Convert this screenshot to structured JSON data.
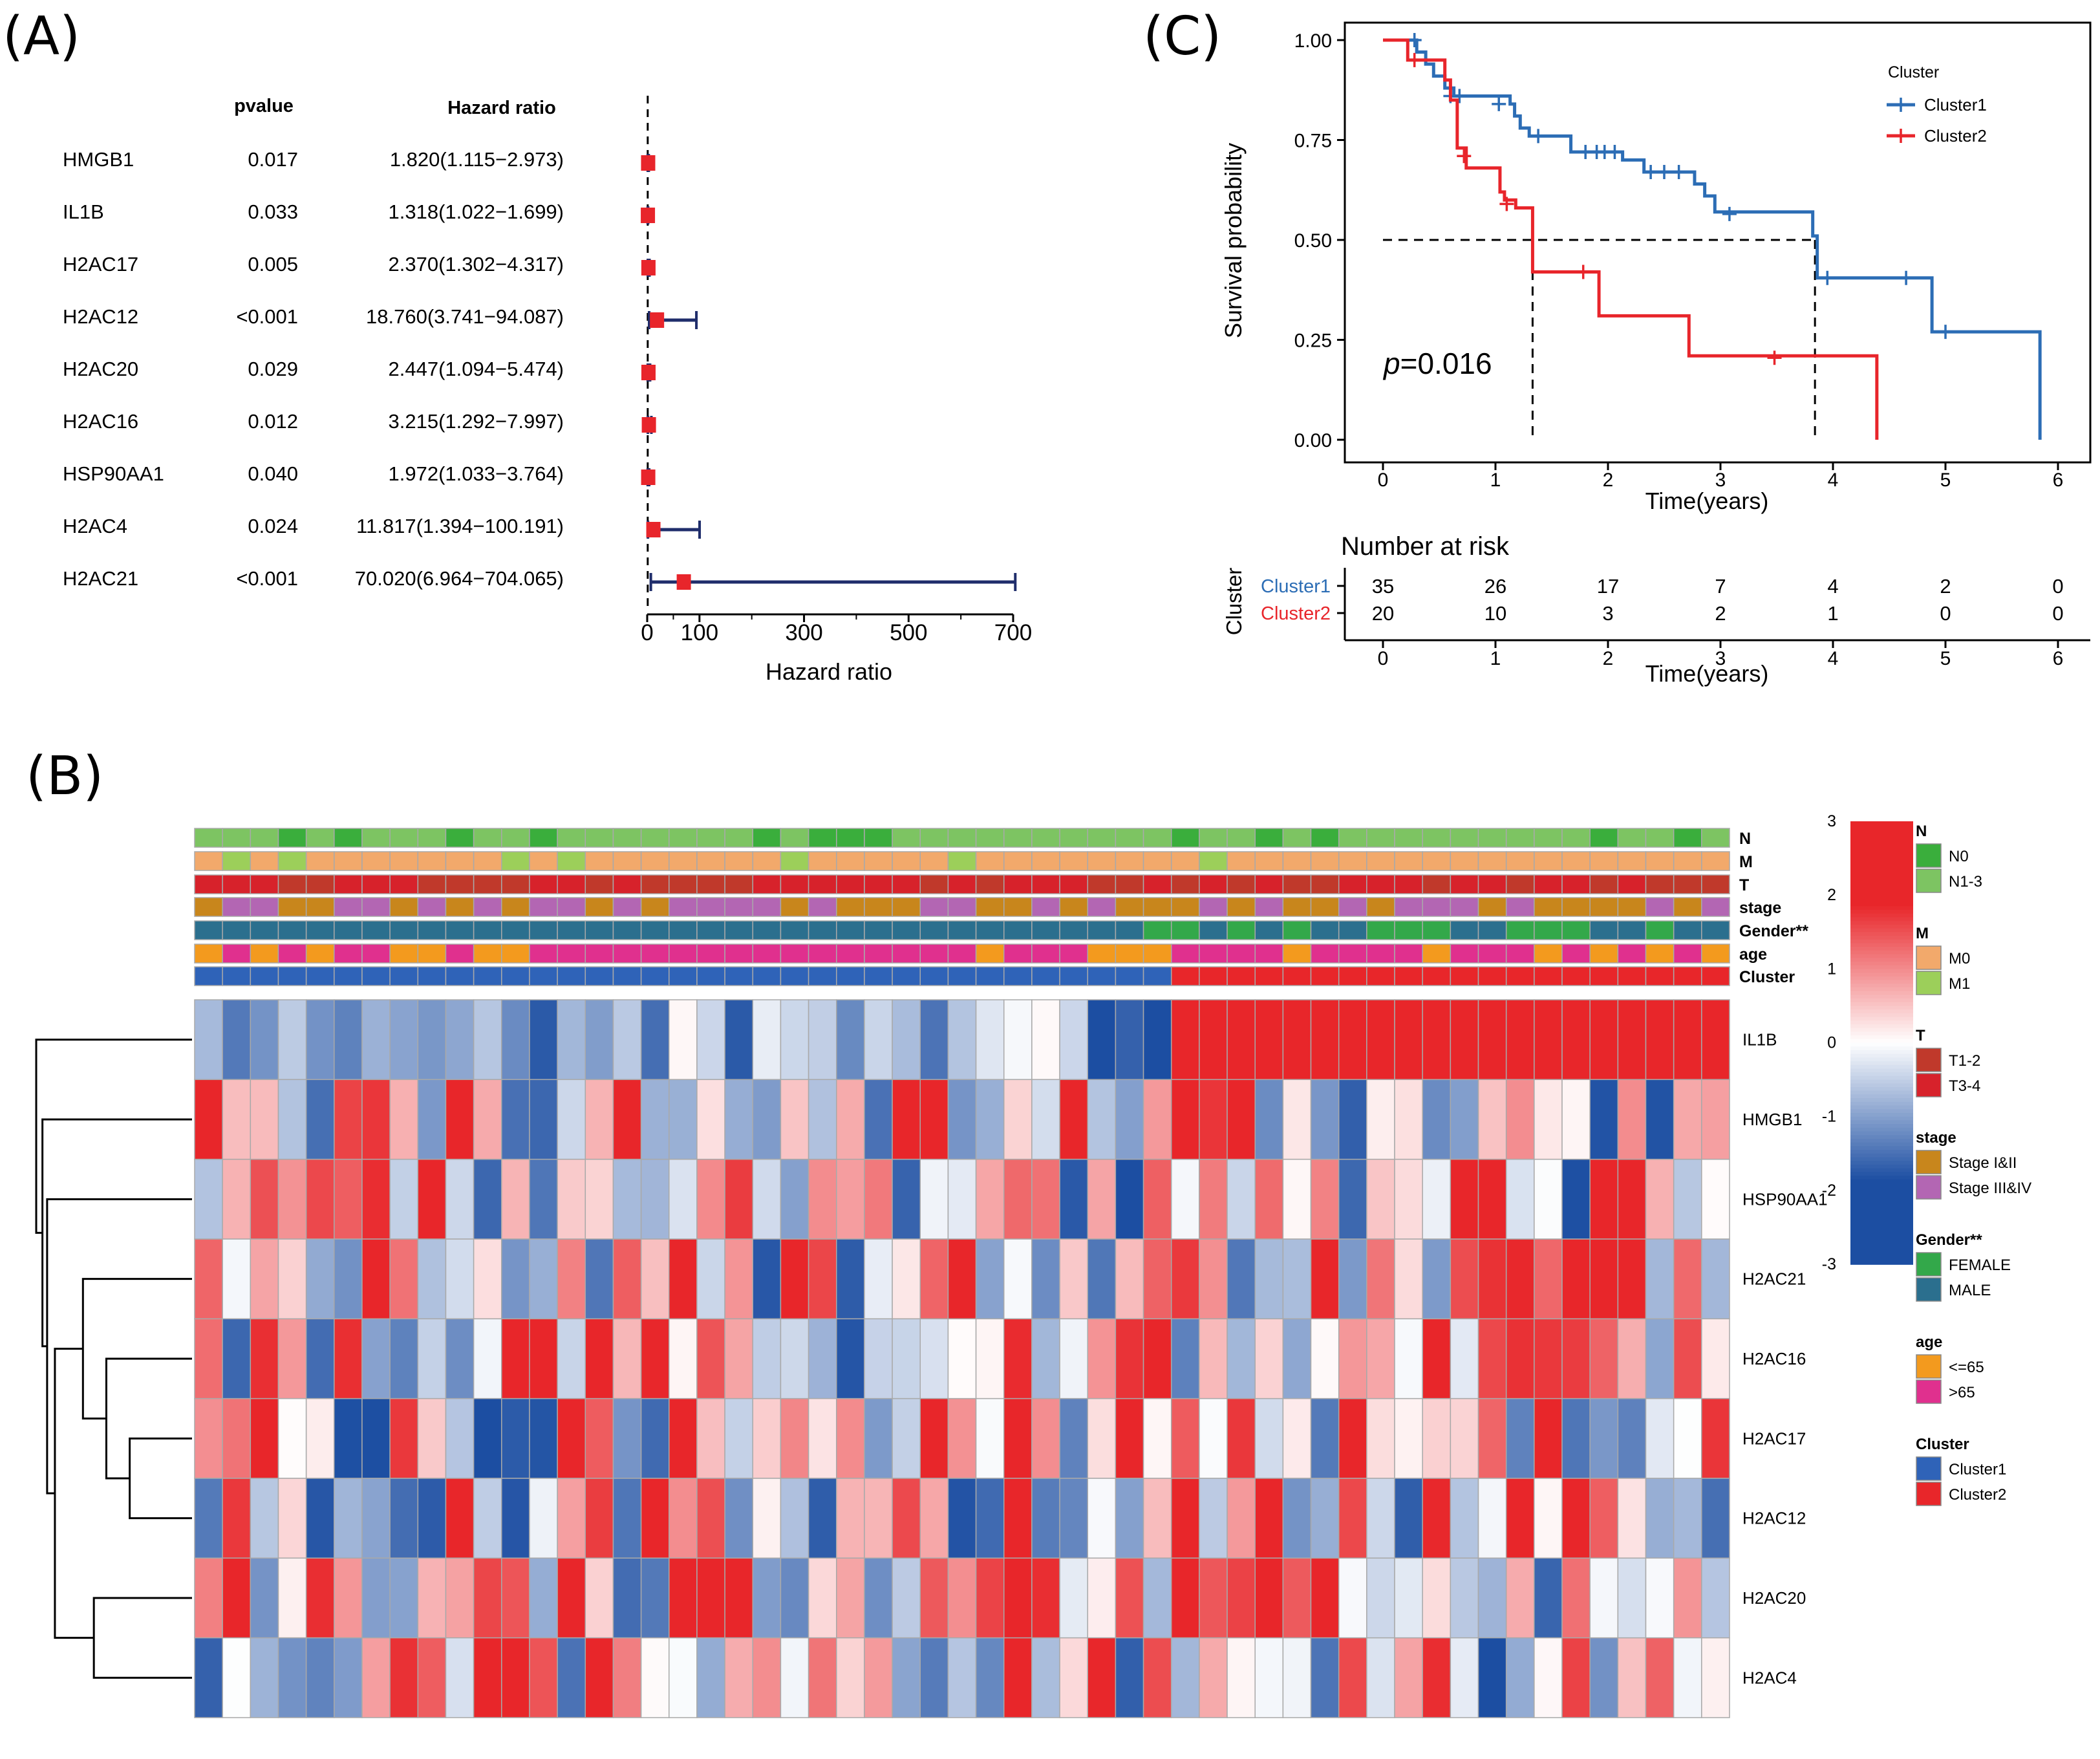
{
  "panel_labels": {
    "a": "(A)",
    "b": "(B)",
    "c": "(C)"
  },
  "colors": {
    "forest_line": "#1f2d6b",
    "forest_point": "#e8252b",
    "km_cluster1": "#2c6db5",
    "km_cluster2": "#e8252b",
    "heat_low": "#1c4ea2",
    "heat_mid": "#ffffff",
    "heat_high": "#e8262a",
    "grid_border": "#a9a9a9",
    "N0": "#3aae3c",
    "N1_3": "#7dc462",
    "M0": "#f2a96b",
    "M1": "#9ccf5a",
    "T1_2": "#c0392b",
    "T3_4": "#d7222b",
    "stage_I_II": "#c8861c",
    "stage_III_IV": "#b366b3",
    "FEMALE": "#33a84a",
    "MALE": "#2b6f8e",
    "age_le65": "#f39a1e",
    "age_gt65": "#e0308e",
    "Cluster1": "#2f63b8",
    "Cluster2": "#e8262a"
  },
  "chart_data": [
    {
      "type": "forest",
      "panel": "(A)",
      "header_pvalue": "pvalue",
      "header_hr": "Hazard ratio",
      "xlabel": "Hazard ratio",
      "xlim": [
        0,
        700
      ],
      "xticks": [
        0,
        100,
        300,
        500,
        700
      ],
      "reference_line": 1,
      "rows": [
        {
          "gene": "HMGB1",
          "pvalue": "0.017",
          "hr_text": "1.820(1.115−2.973)",
          "hr": 1.82,
          "lo": 1.115,
          "hi": 2.973
        },
        {
          "gene": "IL1B",
          "pvalue": "0.033",
          "hr_text": "1.318(1.022−1.699)",
          "hr": 1.318,
          "lo": 1.022,
          "hi": 1.699
        },
        {
          "gene": "H2AC17",
          "pvalue": "0.005",
          "hr_text": "2.370(1.302−4.317)",
          "hr": 2.37,
          "lo": 1.302,
          "hi": 4.317
        },
        {
          "gene": "H2AC12",
          "pvalue": "<0.001",
          "hr_text": "18.760(3.741−94.087)",
          "hr": 18.76,
          "lo": 3.741,
          "hi": 94.087
        },
        {
          "gene": "H2AC20",
          "pvalue": "0.029",
          "hr_text": "2.447(1.094−5.474)",
          "hr": 2.447,
          "lo": 1.094,
          "hi": 5.474
        },
        {
          "gene": "H2AC16",
          "pvalue": "0.012",
          "hr_text": "3.215(1.292−7.997)",
          "hr": 3.215,
          "lo": 1.292,
          "hi": 7.997
        },
        {
          "gene": "HSP90AA1",
          "pvalue": "0.040",
          "hr_text": "1.972(1.033−3.764)",
          "hr": 1.972,
          "lo": 1.033,
          "hi": 3.764
        },
        {
          "gene": "H2AC4",
          "pvalue": "0.024",
          "hr_text": "11.817(1.394−100.191)",
          "hr": 11.817,
          "lo": 1.394,
          "hi": 100.191
        },
        {
          "gene": "H2AC21",
          "pvalue": "<0.001",
          "hr_text": "70.020(6.964−704.065)",
          "hr": 70.02,
          "lo": 6.964,
          "hi": 704.065
        }
      ]
    },
    {
      "type": "heatmap",
      "panel": "(B)",
      "n_samples": 55,
      "n_cluster1": 35,
      "color_range": [
        -3,
        3
      ],
      "colorbar_ticks": [
        3,
        2,
        1,
        0,
        -1,
        -2,
        -3
      ],
      "rows": [
        "IL1B",
        "HMGB1",
        "HSP90AA1",
        "H2AC21",
        "H2AC16",
        "H2AC17",
        "H2AC12",
        "H2AC20",
        "H2AC4"
      ],
      "annotation_rows": [
        "N",
        "M",
        "T",
        "stage",
        "Gender**",
        "age",
        "Cluster"
      ],
      "legend": [
        {
          "title": "N",
          "items": [
            {
              "label": "N0",
              "color": "N0"
            },
            {
              "label": "N1-3",
              "color": "N1_3"
            }
          ]
        },
        {
          "title": "M",
          "items": [
            {
              "label": "M0",
              "color": "M0"
            },
            {
              "label": "M1",
              "color": "M1"
            }
          ]
        },
        {
          "title": "T",
          "items": [
            {
              "label": "T1-2",
              "color": "T1_2"
            },
            {
              "label": "T3-4",
              "color": "T3_4"
            }
          ]
        },
        {
          "title": "stage",
          "items": [
            {
              "label": "Stage I&II",
              "color": "stage_I_II"
            },
            {
              "label": "Stage III&IV",
              "color": "stage_III_IV"
            }
          ]
        },
        {
          "title": "Gender**",
          "items": [
            {
              "label": "FEMALE",
              "color": "FEMALE"
            },
            {
              "label": "MALE",
              "color": "MALE"
            }
          ]
        },
        {
          "title": "age",
          "items": [
            {
              "label": "<=65",
              "color": "age_le65"
            },
            {
              "label": ">65",
              "color": "age_gt65"
            }
          ]
        },
        {
          "title": "Cluster",
          "items": [
            {
              "label": "Cluster1",
              "color": "Cluster1"
            },
            {
              "label": "Cluster2",
              "color": "Cluster2"
            }
          ]
        }
      ],
      "dendrogram_merges": [
        [
          5,
          6
        ],
        [
          4,
          9
        ],
        [
          3,
          10
        ],
        [
          7,
          8
        ],
        [
          11,
          12
        ],
        [
          2,
          13
        ],
        [
          1,
          14
        ],
        [
          0,
          15
        ]
      ],
      "dendrogram_heights": [
        0.4,
        0.55,
        0.7,
        0.63,
        0.88,
        0.93,
        0.96,
        1.0
      ]
    },
    {
      "type": "line",
      "subtype": "kaplan-meier",
      "panel": "(C)",
      "ylabel": "Survival probability",
      "xlabel": "Time(years)",
      "xlim": [
        0,
        6
      ],
      "ylim": [
        0,
        1
      ],
      "xticks": [
        0,
        1,
        2,
        3,
        4,
        5,
        6
      ],
      "yticks": [
        "0.00",
        "0.25",
        "0.50",
        "0.75",
        "1.00"
      ],
      "legend_title": "Cluster",
      "p_prefix": "p",
      "p_value": "=0.016",
      "median_survival": {
        "Cluster1": 3.84,
        "Cluster2": 1.33
      },
      "series": [
        {
          "name": "Cluster1",
          "color": "km_cluster1",
          "steps": [
            [
              0,
              1.0
            ],
            [
              0.3,
              0.97
            ],
            [
              0.38,
              0.94
            ],
            [
              0.45,
              0.91
            ],
            [
              0.55,
              0.88
            ],
            [
              0.63,
              0.86
            ],
            [
              1.13,
              0.84
            ],
            [
              1.17,
              0.81
            ],
            [
              1.22,
              0.78
            ],
            [
              1.3,
              0.76
            ],
            [
              1.67,
              0.72
            ],
            [
              2.13,
              0.7
            ],
            [
              2.32,
              0.67
            ],
            [
              2.58,
              0.67
            ],
            [
              2.77,
              0.64
            ],
            [
              2.86,
              0.61
            ],
            [
              2.95,
              0.57
            ],
            [
              3.82,
              0.51
            ],
            [
              3.86,
              0.405
            ],
            [
              4.88,
              0.27
            ],
            [
              5.84,
              0.0
            ]
          ],
          "censor": [
            [
              0.28,
              1.0
            ],
            [
              0.6,
              0.86
            ],
            [
              0.68,
              0.86
            ],
            [
              1.03,
              0.84
            ],
            [
              1.38,
              0.76
            ],
            [
              1.8,
              0.72
            ],
            [
              1.9,
              0.72
            ],
            [
              1.97,
              0.72
            ],
            [
              2.06,
              0.72
            ],
            [
              2.38,
              0.67
            ],
            [
              2.5,
              0.67
            ],
            [
              2.63,
              0.67
            ],
            [
              3.08,
              0.565
            ],
            [
              3.95,
              0.405
            ],
            [
              4.65,
              0.405
            ],
            [
              5.0,
              0.27
            ]
          ]
        },
        {
          "name": "Cluster2",
          "color": "km_cluster2",
          "steps": [
            [
              0,
              1.0
            ],
            [
              0.22,
              0.95
            ],
            [
              0.55,
              0.9
            ],
            [
              0.6,
              0.85
            ],
            [
              0.66,
              0.73
            ],
            [
              0.74,
              0.68
            ],
            [
              1.04,
              0.62
            ],
            [
              1.08,
              0.6
            ],
            [
              1.18,
              0.58
            ],
            [
              1.33,
              0.42
            ],
            [
              1.92,
              0.31
            ],
            [
              2.72,
              0.21
            ],
            [
              4.39,
              0.0
            ]
          ],
          "censor": [
            [
              0.28,
              0.95
            ],
            [
              0.72,
              0.71
            ],
            [
              1.1,
              0.59
            ],
            [
              1.78,
              0.42
            ],
            [
              3.48,
              0.205
            ]
          ]
        }
      ],
      "risk_table": {
        "title": "Number at risk",
        "ylabel": "Cluster",
        "xlabel": "Time(years)",
        "rows": [
          {
            "name": "Cluster1",
            "values": [
              "35",
              "26",
              "17",
              "7",
              "4",
              "2",
              "0"
            ]
          },
          {
            "name": "Cluster2",
            "values": [
              "20",
              "10",
              "3",
              "2",
              "1",
              "0",
              "0"
            ]
          }
        ]
      }
    }
  ]
}
